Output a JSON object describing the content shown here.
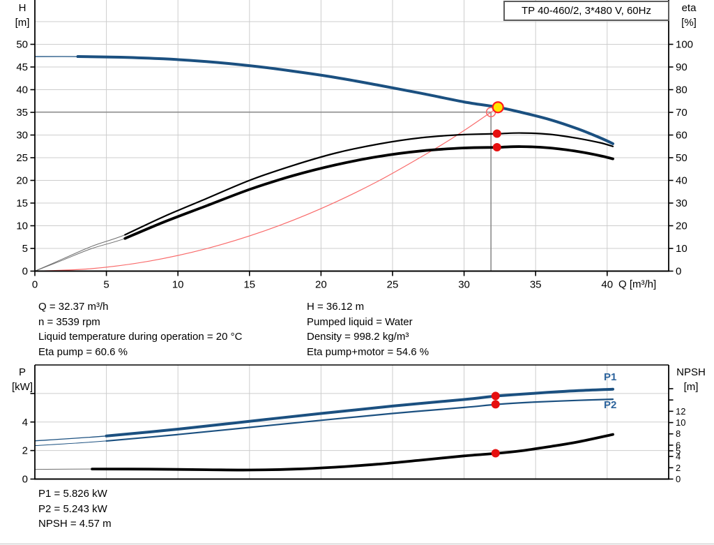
{
  "title_box": {
    "label": "TP 40-460/2, 3*480 V, 60Hz"
  },
  "axis_titles": {
    "h": "H",
    "h_unit": "[m]",
    "eta": "eta",
    "eta_unit": "[%]",
    "q": "Q [m³/h]",
    "p": "P",
    "p_unit": "[kW]",
    "npsh": "NPSH",
    "npsh_unit": "[m]"
  },
  "curve_labels": {
    "p1": "P1",
    "p2": "P2"
  },
  "info_top": {
    "left": [
      "Q = 32.37 m³/h",
      "n = 3539 rpm",
      "Liquid temperature during operation = 20 °C",
      "Eta pump = 60.6 %"
    ],
    "right": [
      "H = 36.12 m",
      "Pumped liquid = Water",
      "Density = 998.2 kg/m³",
      "Eta pump+motor = 54.6 %"
    ]
  },
  "info_bottom": [
    "P1 = 5.826 kW",
    "P2 = 5.243 kW",
    "NPSH = 4.57 m"
  ],
  "colors": {
    "curve_blue": "#1b5080",
    "label_blue": "#2c639c",
    "black": "#000000",
    "thin_gray": "#6f6f6f",
    "grid": "#cdcdcd",
    "crosshair": "#8c8c8c",
    "red_dot": "#e60f0f",
    "light_red": "#f96a6a",
    "duty_yellow": "#ffe600",
    "duty_ring": "#ff1a1a"
  },
  "chart_data": [
    {
      "type": "line",
      "title": "TP 40-460/2, 3*480 V, 60Hz",
      "x_axis": {
        "label": "Q [m³/h]",
        "min": 0,
        "max": 44.3,
        "ticks": [
          0,
          5,
          10,
          15,
          20,
          25,
          30,
          35,
          40
        ]
      },
      "y_left": {
        "label": "H [m]",
        "min": 0,
        "max": 60,
        "ticks": [
          0,
          5,
          10,
          15,
          20,
          25,
          30,
          35,
          40,
          45,
          50
        ],
        "grid": [
          5,
          10,
          15,
          20,
          25,
          30,
          35,
          40,
          45,
          50,
          55
        ]
      },
      "y_right": {
        "label": "eta [%]",
        "min": 0,
        "max": 120,
        "ticks": [
          0,
          10,
          20,
          30,
          40,
          50,
          60,
          70,
          80,
          90,
          100
        ]
      },
      "series": [
        {
          "name": "system-curve",
          "axis": "left",
          "role": "thin-red",
          "points": [
            [
              0,
              0
            ],
            [
              4,
              0.55
            ],
            [
              8,
              2.2
            ],
            [
              12,
              4.96
            ],
            [
              16,
              8.82
            ],
            [
              20,
              13.78
            ],
            [
              24,
              19.85
            ],
            [
              28,
              27.02
            ],
            [
              30,
              31.0
            ],
            [
              31.88,
              35.05
            ],
            [
              32.37,
              36.12
            ]
          ]
        },
        {
          "name": "head-curve",
          "axis": "left",
          "role": "blue-main",
          "thin_until": 2.8,
          "points": [
            [
              0,
              47.3
            ],
            [
              3,
              47.3
            ],
            [
              6,
              47.15
            ],
            [
              9,
              46.8
            ],
            [
              12,
              46.2
            ],
            [
              15,
              45.3
            ],
            [
              18,
              44.1
            ],
            [
              21,
              42.7
            ],
            [
              24,
              41.0
            ],
            [
              27,
              39.2
            ],
            [
              30,
              37.3
            ],
            [
              32.37,
              36.12
            ],
            [
              34,
              35.0
            ],
            [
              36,
              33.4
            ],
            [
              38,
              31.3
            ],
            [
              39.5,
              29.4
            ],
            [
              40.4,
              28.1
            ]
          ]
        },
        {
          "name": "eta-pump-curve",
          "axis": "right",
          "role": "black-thin",
          "thin_until": 6.3,
          "points": [
            [
              0,
              0
            ],
            [
              2,
              5.5
            ],
            [
              4,
              11
            ],
            [
              6.3,
              16
            ],
            [
              9,
              24
            ],
            [
              12,
              32
            ],
            [
              15,
              40
            ],
            [
              18,
              46.5
            ],
            [
              21,
              52
            ],
            [
              24,
              56
            ],
            [
              27,
              58.8
            ],
            [
              30,
              60.2
            ],
            [
              32.37,
              60.6
            ],
            [
              34,
              60.9
            ],
            [
              36,
              60.3
            ],
            [
              38,
              58.5
            ],
            [
              39.5,
              56.6
            ],
            [
              40.4,
              55
            ]
          ]
        },
        {
          "name": "eta-pump-motor-curve",
          "axis": "right",
          "role": "black-thick",
          "thin_until": 6.3,
          "points": [
            [
              0,
              0
            ],
            [
              2,
              5
            ],
            [
              4,
              10
            ],
            [
              6.3,
              14.4
            ],
            [
              9,
              21.6
            ],
            [
              12,
              28.8
            ],
            [
              15,
              36
            ],
            [
              18,
              42
            ],
            [
              21,
              46.8
            ],
            [
              24,
              50.5
            ],
            [
              27,
              53
            ],
            [
              30,
              54.3
            ],
            [
              32.37,
              54.6
            ],
            [
              34,
              54.9
            ],
            [
              36,
              54.3
            ],
            [
              38,
              52.7
            ],
            [
              39.5,
              50.9
            ],
            [
              40.4,
              49.5
            ]
          ]
        }
      ],
      "markers": [
        {
          "type": "open-circle",
          "x": 31.88,
          "value": 35.05,
          "axis": "left"
        },
        {
          "type": "duty-point",
          "x": 32.37,
          "value": 36.12,
          "axis": "left"
        },
        {
          "type": "dot",
          "x": 32.3,
          "value": 60.6,
          "axis": "right"
        },
        {
          "type": "dot",
          "x": 32.3,
          "value": 54.6,
          "axis": "right"
        }
      ],
      "crosshair": {
        "x": 31.88,
        "value": 35.05,
        "axis": "left"
      }
    },
    {
      "type": "line",
      "x_axis": {
        "label": "Q [m³/h]",
        "min": 0,
        "max": 44.3,
        "ticks": []
      },
      "y_left": {
        "label": "P [kW]",
        "min": 0,
        "max": 8,
        "ticks": [
          0,
          2,
          4
        ],
        "tick_only": [
          6
        ],
        "grid": [
          2,
          4,
          6
        ]
      },
      "y_right": {
        "label": "NPSH [m]",
        "min": 0,
        "max": 20.2,
        "ticks": [
          0,
          2,
          4,
          5,
          6,
          8,
          10,
          12
        ],
        "tick_only": [
          14,
          16
        ]
      },
      "series": [
        {
          "name": "p1-curve",
          "axis": "left",
          "role": "blue-main",
          "thin_until": 2.9,
          "points": [
            [
              0,
              2.68
            ],
            [
              5,
              3.02
            ],
            [
              10,
              3.5
            ],
            [
              15,
              4.05
            ],
            [
              20,
              4.6
            ],
            [
              25,
              5.12
            ],
            [
              30,
              5.58
            ],
            [
              32.37,
              5.83
            ],
            [
              35,
              6.02
            ],
            [
              38,
              6.2
            ],
            [
              40.4,
              6.3
            ]
          ]
        },
        {
          "name": "p2-curve",
          "axis": "left",
          "role": "blue-thin",
          "thin_until": 2.9,
          "points": [
            [
              0,
              2.34
            ],
            [
              5,
              2.67
            ],
            [
              10,
              3.12
            ],
            [
              15,
              3.62
            ],
            [
              20,
              4.12
            ],
            [
              25,
              4.6
            ],
            [
              30,
              5.02
            ],
            [
              32.37,
              5.24
            ],
            [
              35,
              5.4
            ],
            [
              38,
              5.52
            ],
            [
              40.4,
              5.6
            ]
          ]
        },
        {
          "name": "npsh-curve",
          "axis": "right",
          "role": "black-thick",
          "thin_until": 2.9,
          "points": [
            [
              0,
              1.72
            ],
            [
              4,
              1.78
            ],
            [
              8,
              1.75
            ],
            [
              12,
              1.65
            ],
            [
              15,
              1.6
            ],
            [
              18,
              1.75
            ],
            [
              21,
              2.1
            ],
            [
              24,
              2.65
            ],
            [
              27,
              3.35
            ],
            [
              30,
              4.1
            ],
            [
              32.37,
              4.57
            ],
            [
              34,
              5.0
            ],
            [
              36,
              5.75
            ],
            [
              38,
              6.6
            ],
            [
              40.4,
              7.9
            ]
          ]
        }
      ],
      "markers": [
        {
          "type": "dot",
          "x": 32.2,
          "value": 5.826,
          "axis": "left"
        },
        {
          "type": "dot",
          "x": 32.2,
          "value": 5.243,
          "axis": "left"
        },
        {
          "type": "dot",
          "x": 32.2,
          "value": 4.57,
          "axis": "right"
        }
      ]
    }
  ],
  "operating_point": {
    "Q": "32.37 m³/h",
    "H": "36.12 m",
    "eta_pump": "60.6 %",
    "eta_pump_motor": "54.6 %",
    "P1": "5.826 kW",
    "P2": "5.243 kW",
    "NPSH": "4.57 m"
  }
}
